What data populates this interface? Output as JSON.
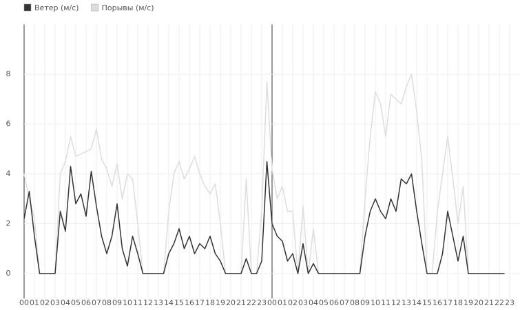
{
  "chart_data": {
    "type": "line",
    "x": [
      0,
      0.5,
      1,
      1.5,
      2,
      2.5,
      3,
      3.5,
      4,
      4.5,
      5,
      5.5,
      6,
      6.5,
      7,
      7.5,
      8,
      8.5,
      9,
      9.5,
      10,
      10.5,
      11,
      11.5,
      12,
      12.5,
      13,
      13.5,
      14,
      14.5,
      15,
      15.5,
      16,
      16.5,
      17,
      17.5,
      18,
      18.5,
      19,
      19.5,
      20,
      20.5,
      21,
      21.5,
      22,
      22.5,
      23,
      23.5,
      24,
      24.5,
      25,
      25.5,
      26,
      26.5,
      27,
      27.5,
      28,
      28.5,
      29,
      29.5,
      30,
      30.5,
      31,
      31.5,
      32,
      32.5,
      33,
      33.5,
      34,
      34.5,
      35,
      35.5,
      36,
      36.5,
      37,
      37.5,
      38,
      38.5,
      39,
      39.5,
      40,
      40.5,
      41,
      41.5,
      42,
      42.5,
      43,
      43.5,
      44,
      44.5,
      45,
      45.5,
      46,
      46.5
    ],
    "series": [
      {
        "name": "Порывы (м/с)",
        "color": "#dddddd",
        "values": [
          4.0,
          3.0,
          2.2,
          0,
          0,
          0,
          0,
          4.0,
          4.5,
          5.5,
          4.7,
          4.8,
          4.9,
          5.0,
          5.8,
          4.6,
          4.2,
          3.5,
          4.4,
          3.0,
          4.0,
          3.8,
          2.0,
          0,
          0,
          0,
          0,
          0,
          2.5,
          4.0,
          4.5,
          3.8,
          4.2,
          4.7,
          4.0,
          3.5,
          3.2,
          3.6,
          2.0,
          0,
          0,
          0,
          0,
          3.8,
          0,
          0,
          2.5,
          7.7,
          4.2,
          3.0,
          3.5,
          2.5,
          2.5,
          0,
          2.7,
          0,
          1.8,
          0,
          0,
          0,
          0,
          0,
          0,
          0,
          0,
          0,
          3.0,
          5.5,
          7.3,
          6.8,
          5.5,
          7.2,
          7.0,
          6.8,
          7.5,
          8.0,
          6.5,
          4.5,
          0,
          0,
          2.5,
          4.0,
          5.5,
          3.8,
          2.0,
          3.5,
          0,
          0,
          0,
          0,
          0,
          0,
          0,
          0
        ]
      },
      {
        "name": "Ветер (м/с)",
        "color": "#333333",
        "values": [
          2.2,
          3.3,
          1.5,
          0,
          0,
          0,
          0,
          2.5,
          1.7,
          4.3,
          2.8,
          3.2,
          2.3,
          4.1,
          2.7,
          1.5,
          0.8,
          1.5,
          2.8,
          1.0,
          0.3,
          1.5,
          0.8,
          0,
          0,
          0,
          0,
          0,
          0.8,
          1.2,
          1.8,
          1.0,
          1.5,
          0.8,
          1.2,
          1.0,
          1.5,
          0.8,
          0.5,
          0,
          0,
          0,
          0,
          0.6,
          0,
          0,
          0.5,
          4.5,
          2.0,
          1.5,
          1.3,
          0.5,
          0.8,
          0,
          1.2,
          0,
          0.4,
          0,
          0,
          0,
          0,
          0,
          0,
          0,
          0,
          0,
          1.5,
          2.5,
          3.0,
          2.5,
          2.2,
          3.0,
          2.5,
          3.8,
          3.6,
          4.0,
          2.5,
          1.2,
          0,
          0,
          0,
          0.8,
          2.5,
          1.5,
          0.5,
          1.5,
          0,
          0,
          0,
          0,
          0,
          0,
          0,
          0
        ]
      }
    ],
    "xlim": [
      0,
      48
    ],
    "xticks": [
      {
        "value": 0,
        "label": "00"
      },
      {
        "value": 1,
        "label": "01"
      },
      {
        "value": 2,
        "label": "02"
      },
      {
        "value": 3,
        "label": "03"
      },
      {
        "value": 4,
        "label": "04"
      },
      {
        "value": 5,
        "label": "05"
      },
      {
        "value": 6,
        "label": "06"
      },
      {
        "value": 7,
        "label": "07"
      },
      {
        "value": 8,
        "label": "08"
      },
      {
        "value": 9,
        "label": "09"
      },
      {
        "value": 10,
        "label": "10"
      },
      {
        "value": 11,
        "label": "11"
      },
      {
        "value": 12,
        "label": "12"
      },
      {
        "value": 13,
        "label": "13"
      },
      {
        "value": 14,
        "label": "14"
      },
      {
        "value": 15,
        "label": "15"
      },
      {
        "value": 16,
        "label": "16"
      },
      {
        "value": 17,
        "label": "17"
      },
      {
        "value": 18,
        "label": "18"
      },
      {
        "value": 19,
        "label": "19"
      },
      {
        "value": 20,
        "label": "20"
      },
      {
        "value": 21,
        "label": "21"
      },
      {
        "value": 22,
        "label": "22"
      },
      {
        "value": 23,
        "label": "23"
      },
      {
        "value": 24,
        "label": "00"
      },
      {
        "value": 25,
        "label": "01"
      },
      {
        "value": 26,
        "label": "02"
      },
      {
        "value": 27,
        "label": "03"
      },
      {
        "value": 28,
        "label": "04"
      },
      {
        "value": 29,
        "label": "05"
      },
      {
        "value": 30,
        "label": "06"
      },
      {
        "value": 31,
        "label": "07"
      },
      {
        "value": 32,
        "label": "08"
      },
      {
        "value": 33,
        "label": "09"
      },
      {
        "value": 34,
        "label": "10"
      },
      {
        "value": 35,
        "label": "11"
      },
      {
        "value": 36,
        "label": "12"
      },
      {
        "value": 37,
        "label": "13"
      },
      {
        "value": 38,
        "label": "14"
      },
      {
        "value": 39,
        "label": "15"
      },
      {
        "value": 40,
        "label": "16"
      },
      {
        "value": 41,
        "label": "17"
      },
      {
        "value": 42,
        "label": "18"
      },
      {
        "value": 43,
        "label": "19"
      },
      {
        "value": 44,
        "label": "20"
      },
      {
        "value": 45,
        "label": "21"
      },
      {
        "value": 46,
        "label": "22"
      },
      {
        "value": 47,
        "label": "23"
      }
    ],
    "ylim": [
      -1,
      10
    ],
    "yticks": [
      0,
      2,
      4,
      6,
      8
    ],
    "grid": true,
    "legend": "top-left"
  }
}
